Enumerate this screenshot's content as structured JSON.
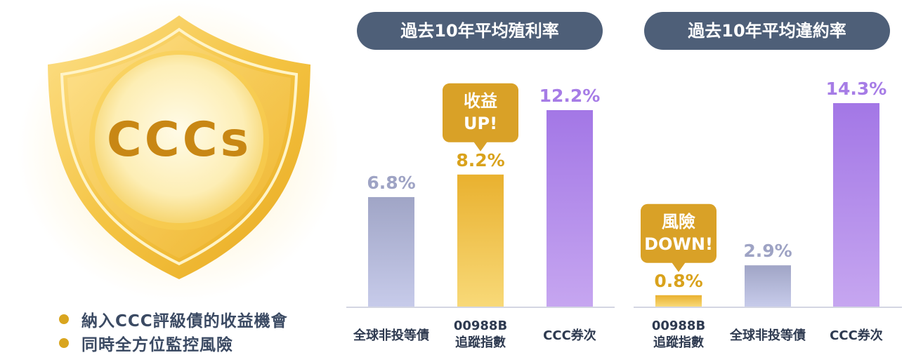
{
  "badge": {
    "logo_text": "CCCs"
  },
  "bullets": [
    {
      "text": "納入CCC評級債的收益機會"
    },
    {
      "text": "同時全方位監控風險"
    }
  ],
  "colors": {
    "grey_bar": "#a9aed0",
    "gold_bar": "#eeb93a",
    "purple_bar": "#ac82e8",
    "title_bg": "#4e5f78",
    "bullet": "#d9a51f"
  },
  "chart_data": [
    {
      "type": "bar",
      "title": "過去10年平均殖利率",
      "categories": [
        "全球非投等債",
        "00988B 追蹤指數",
        "CCC券次"
      ],
      "values": [
        6.8,
        8.2,
        12.2
      ],
      "value_labels": [
        "6.8%",
        "8.2%",
        "12.2%"
      ],
      "bar_colors": [
        "grey",
        "gold",
        "purple"
      ],
      "annotation": {
        "category_index": 1,
        "lines": [
          "收益",
          "UP!"
        ]
      },
      "ylim": [
        0,
        12.2
      ]
    },
    {
      "type": "bar",
      "title": "過去10年平均違約率",
      "categories": [
        "00988B 追蹤指數",
        "全球非投等債",
        "CCC券次"
      ],
      "values": [
        0.8,
        2.9,
        14.3
      ],
      "value_labels": [
        "0.8%",
        "2.9%",
        "14.3%"
      ],
      "bar_colors": [
        "gold",
        "grey",
        "purple"
      ],
      "annotation": {
        "category_index": 0,
        "lines": [
          "風險",
          "DOWN!"
        ]
      },
      "ylim": [
        0,
        14.3
      ]
    }
  ]
}
